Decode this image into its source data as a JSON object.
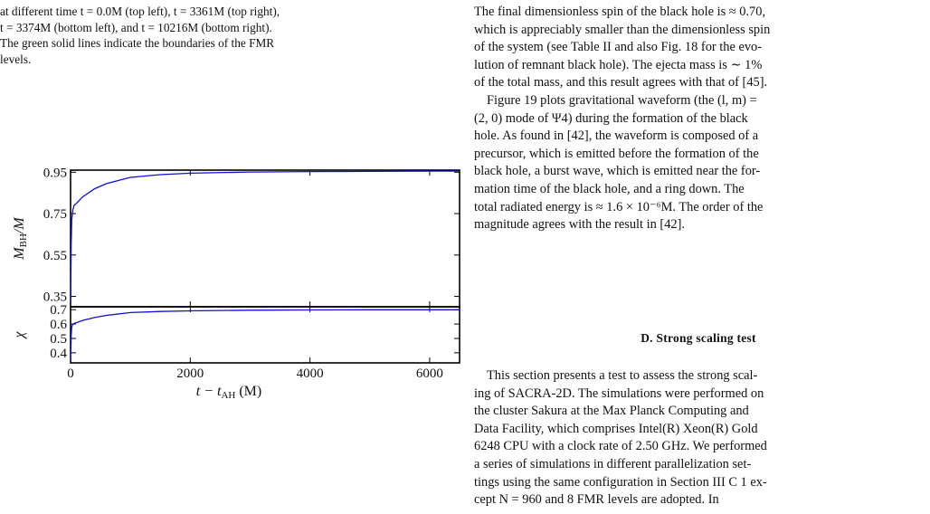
{
  "left_caption": {
    "lines": [
      "at different time t = 0.0M (top left), t = 3361M (top right),",
      "t = 3374M (bottom left), and t = 10216M (bottom right).",
      "The green solid lines indicate the boundaries of the FMR",
      "levels."
    ]
  },
  "right_text": {
    "top_lines": [
      "The final dimensionless spin of the black hole is ≈ 0.70,",
      "which is appreciably smaller than the dimensionless spin",
      "of the system (see Table II and also Fig. 18 for the evo-",
      "lution of remnant black hole). The ejecta mass is ∼ 1%",
      "of the total mass, and this result agrees with that of [45]."
    ],
    "para2_lines": [
      "Figure 19 plots gravitational waveform (the (l, m) =",
      "(2, 0) mode of Ψ4) during the formation of the black",
      "hole. As found in [42], the waveform is composed of a",
      "precursor, which is emitted before the formation of the",
      "black hole, a burst wave, which is emitted near the for-",
      "mation time of the black hole, and a ring down. The",
      "total radiated energy is ≈ 1.6 × 10⁻⁶M. The order of the",
      "magnitude agrees with the result in [42]."
    ],
    "heading": "D.   Strong scaling test",
    "para3_lines": [
      "This section presents a test to assess the strong scal-",
      "ing of SACRA-2D. The simulations were performed on",
      "the cluster Sakura at the Max Planck Computing and",
      "Data Facility, which comprises Intel(R) Xeon(R) Gold",
      "6248 CPU with a clock rate of 2.50 GHz. We performed",
      "a series of simulations in different parallelization set-",
      "tings using the same configuration in Section III C 1 ex-",
      "cept N = 960 and 8 FMR levels are adopted. In"
    ]
  },
  "chart_data": [
    {
      "type": "line",
      "ylabel": "M_BH/M",
      "xlim": [
        0,
        6500
      ],
      "ylim": [
        0.3,
        0.96
      ],
      "yticks": [
        "0.95",
        "0.75",
        "0.55",
        "0.35"
      ],
      "ytick_values": [
        0.95,
        0.75,
        0.55,
        0.35
      ],
      "color": "#1010d8",
      "x": [
        0,
        10,
        20,
        40,
        60,
        100,
        200,
        400,
        600,
        1000,
        1500,
        2000,
        3000,
        4000,
        5000,
        6000,
        6500
      ],
      "y": [
        0.32,
        0.6,
        0.72,
        0.77,
        0.79,
        0.8,
        0.83,
        0.87,
        0.895,
        0.925,
        0.938,
        0.945,
        0.951,
        0.953,
        0.954,
        0.955,
        0.955
      ]
    },
    {
      "type": "line",
      "xlabel": "t − t_AH (M)",
      "ylabel": "χ",
      "xlim": [
        0,
        6500
      ],
      "ylim": [
        0.33,
        0.72
      ],
      "xticks": [
        "0",
        "2000",
        "4000",
        "6000"
      ],
      "xtick_values": [
        0,
        2000,
        4000,
        6000
      ],
      "yticks": [
        "0.7",
        "0.6",
        "0.5",
        "0.4"
      ],
      "ytick_values": [
        0.7,
        0.6,
        0.5,
        0.4
      ],
      "color": "#1010d8",
      "x": [
        0,
        10,
        20,
        40,
        60,
        100,
        200,
        400,
        600,
        1000,
        1500,
        2000,
        3000,
        4000,
        5000,
        6000,
        6500
      ],
      "y": [
        0.34,
        0.52,
        0.58,
        0.6,
        0.605,
        0.61,
        0.625,
        0.645,
        0.66,
        0.68,
        0.687,
        0.692,
        0.696,
        0.698,
        0.699,
        0.699,
        0.699
      ]
    }
  ]
}
